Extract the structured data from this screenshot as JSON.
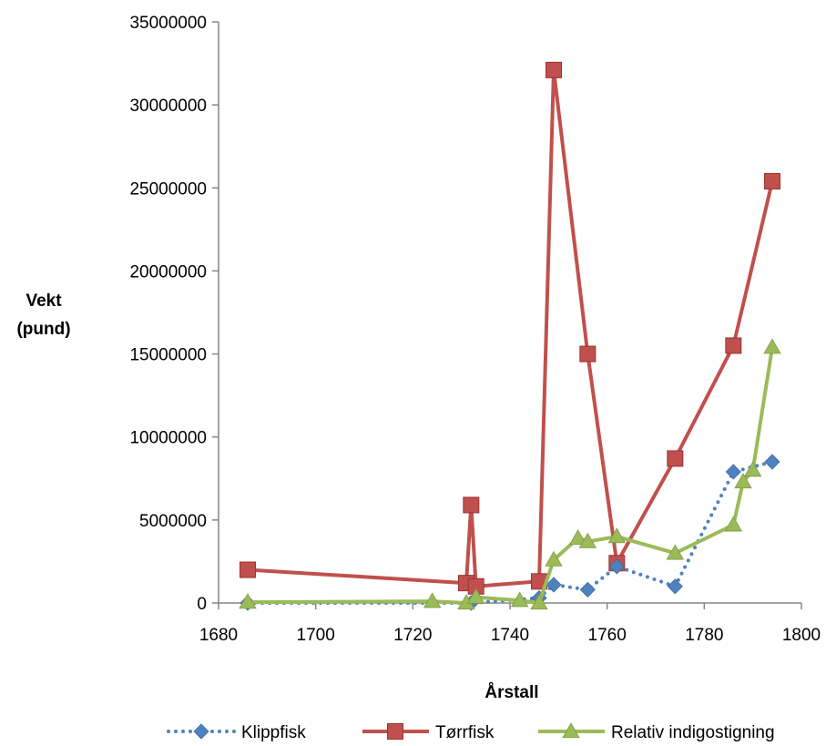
{
  "chart_data": {
    "type": "line",
    "title": "",
    "xlabel": "Årstall",
    "ylabel_lines": [
      "Vekt",
      "(pund)"
    ],
    "xlim": [
      1680,
      1800
    ],
    "ylim": [
      0,
      35000000
    ],
    "x_ticks": [
      "1680",
      "1700",
      "1720",
      "1740",
      "1760",
      "1780",
      "1800"
    ],
    "y_ticks": [
      "0",
      "5000000",
      "10000000",
      "15000000",
      "20000000",
      "25000000",
      "30000000",
      "35000000"
    ],
    "grid": false,
    "legend_position": "bottom",
    "series": [
      {
        "name": "Klippfisk",
        "color": "#4f81bd",
        "line_style": "dotted",
        "marker": "diamond",
        "points": [
          [
            1686,
            0
          ],
          [
            1732,
            0
          ],
          [
            1746,
            300000
          ],
          [
            1749,
            1100000
          ],
          [
            1756,
            800000
          ],
          [
            1762,
            2200000
          ],
          [
            1774,
            1000000
          ],
          [
            1786,
            7900000
          ],
          [
            1794,
            8500000
          ]
        ]
      },
      {
        "name": "Tørrfisk",
        "color": "#c0504d",
        "line_style": "solid",
        "marker": "square",
        "points": [
          [
            1686,
            2000000
          ],
          [
            1731,
            1200000
          ],
          [
            1732,
            5900000
          ],
          [
            1733,
            1000000
          ],
          [
            1746,
            1300000
          ],
          [
            1749,
            32100000
          ],
          [
            1756,
            15000000
          ],
          [
            1762,
            2400000
          ],
          [
            1774,
            8700000
          ],
          [
            1786,
            15500000
          ],
          [
            1794,
            25400000
          ]
        ]
      },
      {
        "name": "Relativ indigostigning",
        "color": "#9bbb59",
        "line_style": "solid",
        "marker": "triangle",
        "points": [
          [
            1686,
            50000
          ],
          [
            1724,
            100000
          ],
          [
            1731,
            0
          ],
          [
            1733,
            350000
          ],
          [
            1742,
            150000
          ],
          [
            1746,
            0
          ],
          [
            1749,
            2600000
          ],
          [
            1754,
            3900000
          ],
          [
            1756,
            3700000
          ],
          [
            1762,
            4000000
          ],
          [
            1774,
            3000000
          ],
          [
            1786,
            4700000
          ],
          [
            1788,
            7300000
          ],
          [
            1790,
            8000000
          ],
          [
            1794,
            15400000
          ]
        ]
      }
    ]
  }
}
